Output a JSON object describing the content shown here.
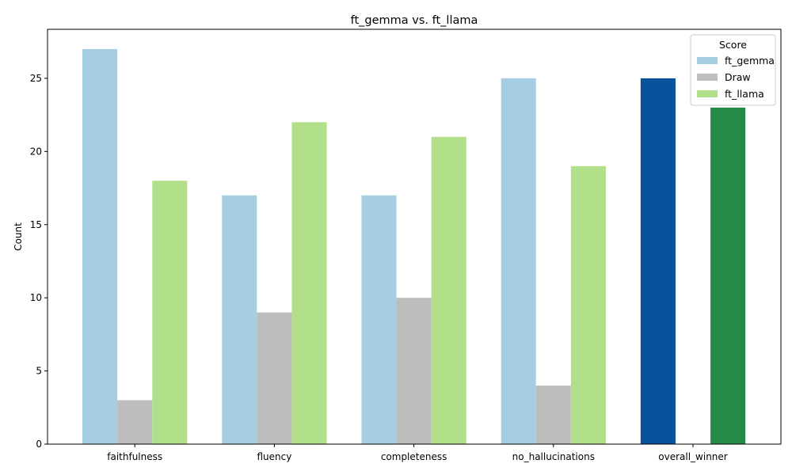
{
  "chart_data": {
    "type": "bar",
    "title": "ft_gemma vs. ft_llama",
    "xlabel": "",
    "ylabel": "Count",
    "ylim": [
      0,
      28.35
    ],
    "yticks": [
      0,
      5,
      10,
      15,
      20,
      25
    ],
    "categories": [
      "faithfulness",
      "fluency",
      "completeness",
      "no_hallucinations",
      "overall_winner"
    ],
    "series": [
      {
        "name": "ft_gemma",
        "color": "#a6cee3",
        "values": [
          27,
          17,
          17,
          25,
          25
        ]
      },
      {
        "name": "Draw",
        "color": "#bdbdbd",
        "values": [
          3,
          9,
          10,
          4,
          0
        ]
      },
      {
        "name": "ft_llama",
        "color": "#b2df8a",
        "values": [
          18,
          22,
          21,
          19,
          23
        ]
      }
    ],
    "highlight": {
      "category": "overall_winner",
      "colors": {
        "ft_gemma": "#08519c",
        "ft_llama": "#238b45"
      }
    },
    "legend": {
      "title": "Score",
      "placement": "top-right"
    },
    "grid": false
  }
}
